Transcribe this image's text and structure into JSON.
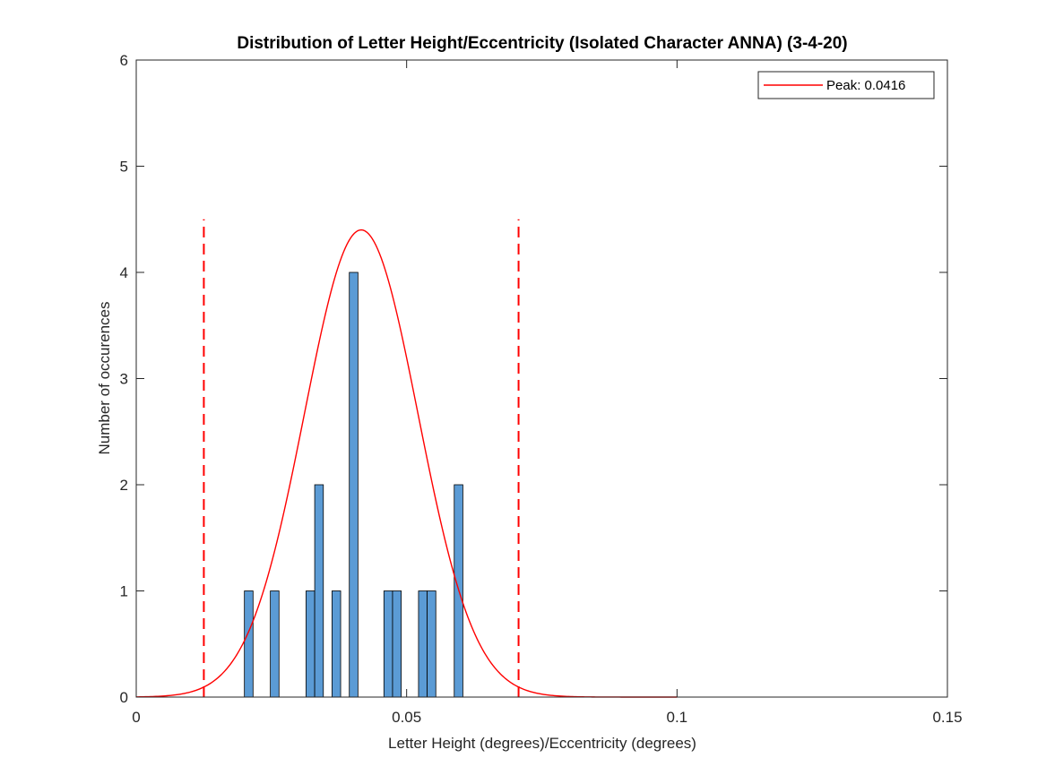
{
  "chart_data": {
    "type": "bar",
    "title": "Distribution of Letter Height/Eccentricity (Isolated Character ANNA) (3-4-20)",
    "xlabel": "Letter Height (degrees)/Eccentricity (degrees)",
    "ylabel": "Number of occurences",
    "xlim": [
      0,
      0.15
    ],
    "ylim": [
      0,
      6
    ],
    "xticks": [
      0,
      0.05,
      0.1,
      0.15
    ],
    "xtick_labels": [
      "0",
      "0.05",
      "0.1",
      "0.15"
    ],
    "yticks": [
      0,
      1,
      2,
      3,
      4,
      5,
      6
    ],
    "ytick_labels": [
      "0",
      "1",
      "2",
      "3",
      "4",
      "5",
      "6"
    ],
    "grid": false,
    "bar_width": 0.0016,
    "bar_color": "#5B9BD5",
    "bars": [
      {
        "x": 0.0208,
        "y": 1
      },
      {
        "x": 0.0256,
        "y": 1
      },
      {
        "x": 0.0322,
        "y": 1
      },
      {
        "x": 0.0338,
        "y": 2
      },
      {
        "x": 0.037,
        "y": 1
      },
      {
        "x": 0.0402,
        "y": 4
      },
      {
        "x": 0.0466,
        "y": 1
      },
      {
        "x": 0.0482,
        "y": 1
      },
      {
        "x": 0.053,
        "y": 1
      },
      {
        "x": 0.0546,
        "y": 1
      },
      {
        "x": 0.0596,
        "y": 2
      }
    ],
    "fit_curve": {
      "type": "gaussian",
      "mean": 0.0416,
      "sigma": 0.0105,
      "amplitude": 4.4,
      "x_range": [
        0,
        0.1
      ],
      "color": "#FF0000"
    },
    "vlines": [
      {
        "x": 0.0125,
        "y_top": 4.5,
        "style": "dashed",
        "color": "#FF0000"
      },
      {
        "x": 0.0707,
        "y_top": 4.5,
        "style": "dashed",
        "color": "#FF0000"
      }
    ],
    "legend": {
      "placement": "top-right",
      "entries": [
        {
          "label": "Peak: 0.0416",
          "color": "#FF0000"
        }
      ]
    }
  }
}
